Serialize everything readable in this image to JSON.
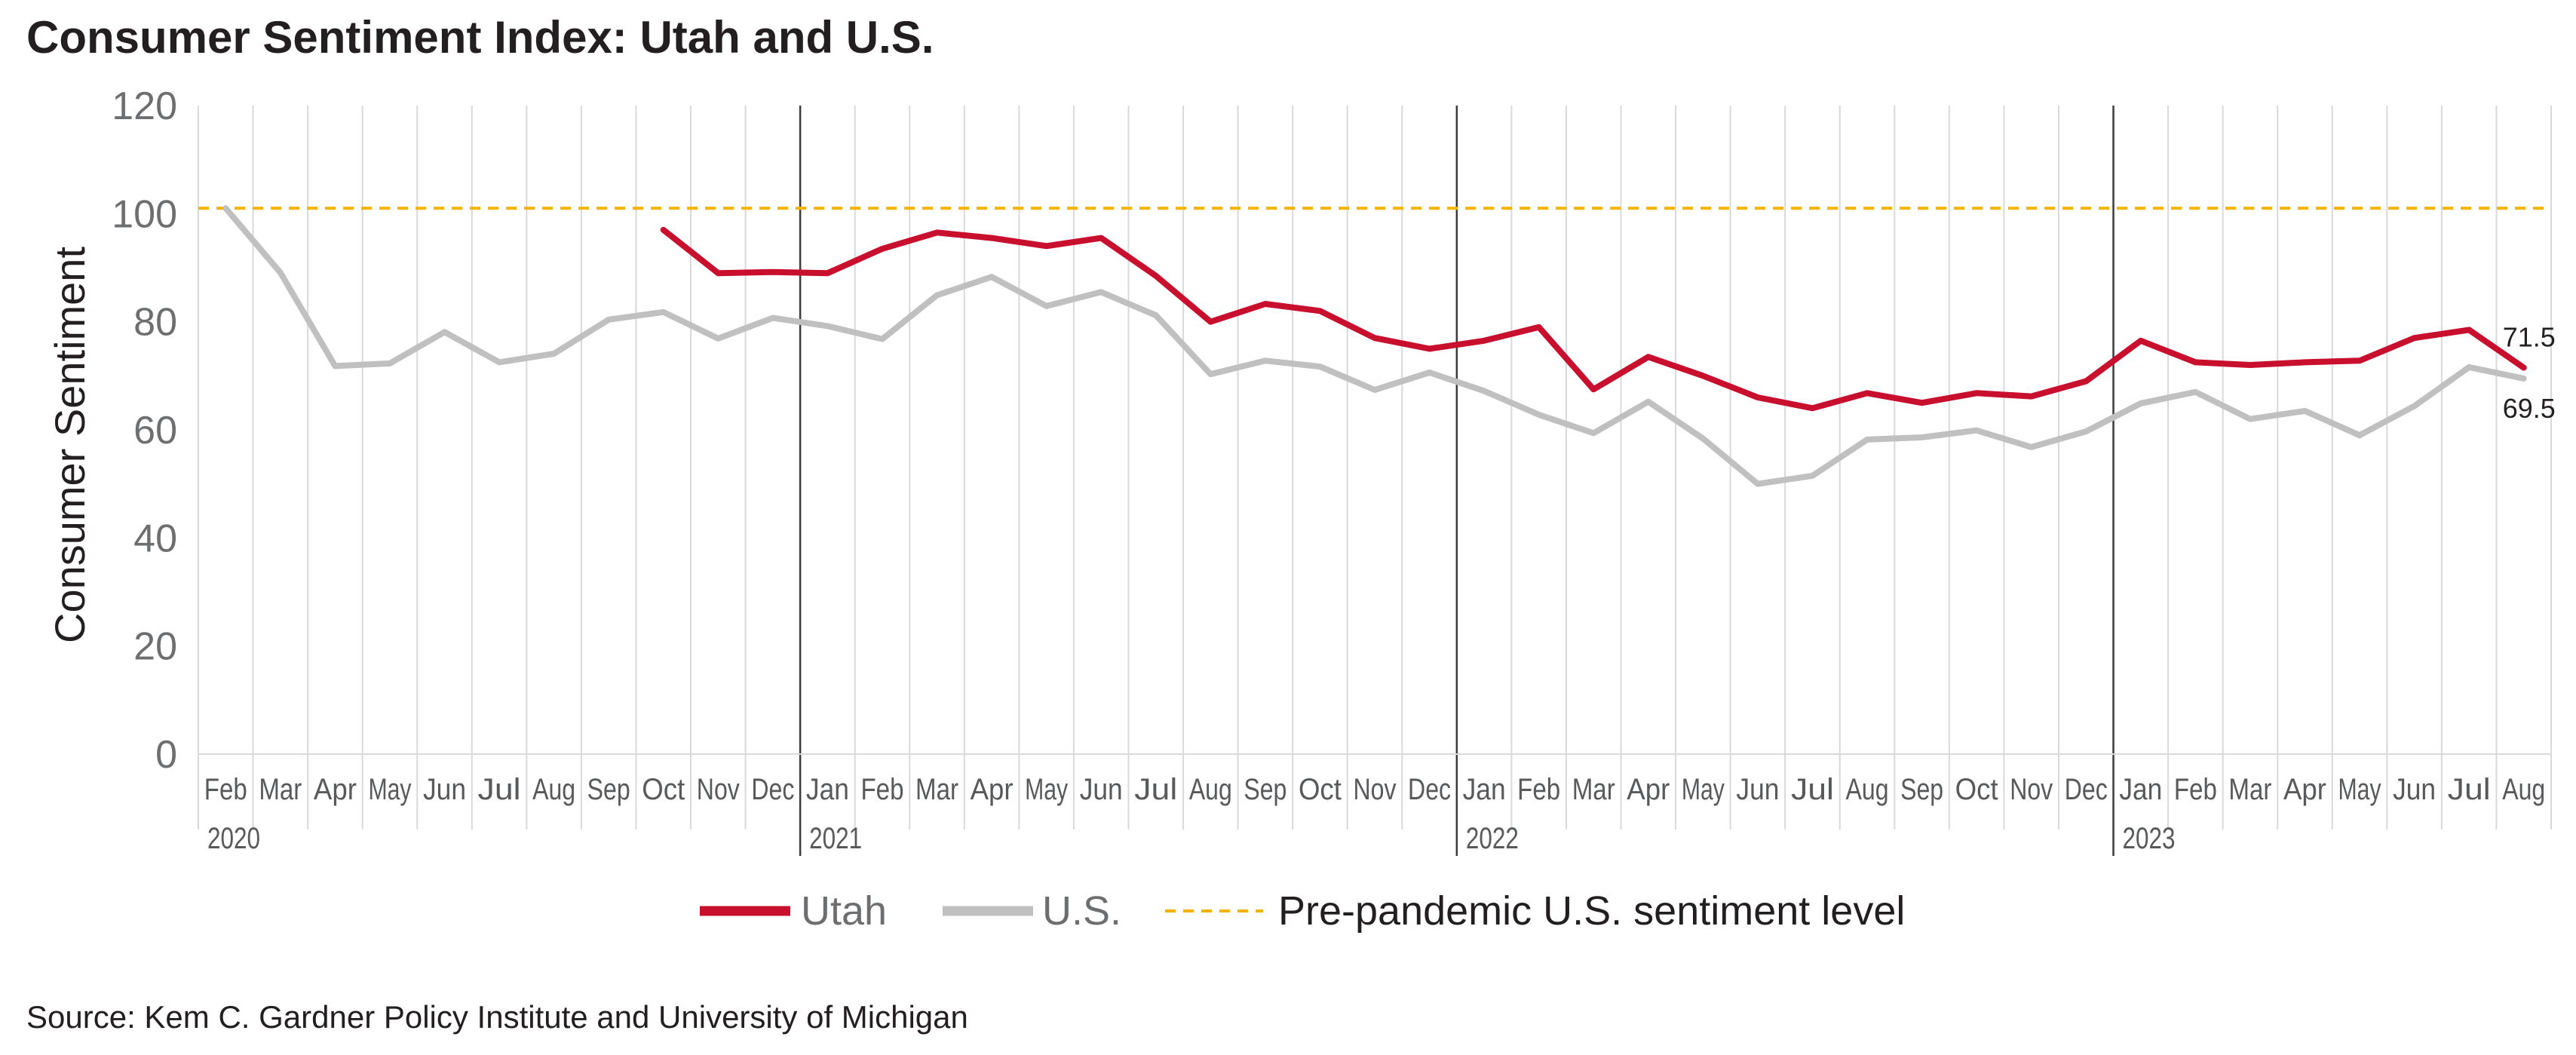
{
  "chart_data": {
    "type": "line",
    "title": "Consumer Sentiment Index: Utah and U.S.",
    "ylabel": "Consumer Sentiment",
    "xlabel": "",
    "ylim": [
      0,
      120
    ],
    "yticks": [
      "0",
      "20",
      "40",
      "60",
      "80",
      "100",
      "120"
    ],
    "categories": [
      "Feb",
      "Mar",
      "Apr",
      "May",
      "Jun",
      "Jul",
      "Aug",
      "Sep",
      "Oct",
      "Nov",
      "Dec",
      "Jan",
      "Feb",
      "Mar",
      "Apr",
      "May",
      "Jun",
      "Jul",
      "Aug",
      "Sep",
      "Oct",
      "Nov",
      "Dec",
      "Jan",
      "Feb",
      "Mar",
      "Apr",
      "May",
      "Jun",
      "Jul",
      "Aug",
      "Sep",
      "Oct",
      "Nov",
      "Dec",
      "Jan",
      "Feb",
      "Mar",
      "Apr",
      "May",
      "Jun",
      "Jul",
      "Aug"
    ],
    "years": [
      {
        "label": "2020",
        "index": 0
      },
      {
        "label": "2021",
        "index": 11
      },
      {
        "label": "2022",
        "index": 23
      },
      {
        "label": "2023",
        "index": 35
      }
    ],
    "series": [
      {
        "name": "Utah",
        "color": "#c8102e",
        "values": [
          null,
          null,
          null,
          null,
          null,
          null,
          null,
          null,
          97,
          89,
          89.2,
          89,
          93.5,
          96.5,
          95.5,
          94,
          95.5,
          88.5,
          80,
          83.3,
          82,
          77,
          75,
          76.5,
          79,
          67.5,
          73.5,
          70,
          66,
          64,
          66.8,
          65,
          66.8,
          66.2,
          69,
          76.5,
          72.5,
          72,
          72.5,
          72.8,
          77,
          78.5,
          71.5
        ]
      },
      {
        "name": "U.S.",
        "color": "#c0c0c0",
        "values": [
          101,
          89.1,
          71.8,
          72.3,
          78.1,
          72.5,
          74.1,
          80.4,
          81.8,
          76.9,
          80.7,
          79.2,
          76.8,
          84.9,
          88.3,
          82.9,
          85.5,
          81.2,
          70.3,
          72.8,
          71.7,
          67.4,
          70.6,
          67.2,
          62.8,
          59.4,
          65.2,
          58.4,
          50,
          51.5,
          58.2,
          58.6,
          59.9,
          56.8,
          59.7,
          64.9,
          67,
          62,
          63.5,
          59,
          64.4,
          71.6,
          69.5
        ]
      },
      {
        "name": "Pre-pandemic U.S. sentiment level",
        "color": "#f5b400",
        "value": 101
      }
    ],
    "annotations": [
      {
        "series": "Utah",
        "label": "71.5"
      },
      {
        "series": "U.S.",
        "label": "69.5"
      }
    ],
    "legend": {
      "position": "bottom",
      "entries": [
        "Utah",
        "U.S.",
        "Pre-pandemic U.S. sentiment level"
      ]
    },
    "grid": true,
    "source": "Source: Kem C. Gardner Policy Institute and University of Michigan"
  }
}
